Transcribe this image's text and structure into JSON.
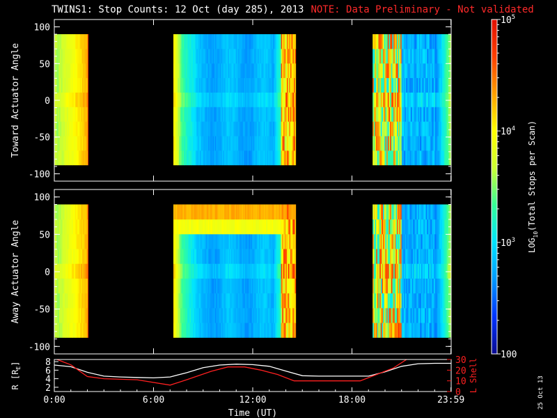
{
  "title": "TWINS1: Stop Counts: 12 Oct (day 285), 2013",
  "note": "NOTE: Data Preliminary - Not validated",
  "stamp": "25 Oct 13",
  "chart_data": [
    {
      "type": "heatmap",
      "ylabel": "Toward Actuator Angle",
      "ylim": [
        -110,
        110
      ],
      "yticks": [
        100,
        50,
        0,
        -50,
        -100
      ],
      "angle_range": [
        -88,
        90
      ],
      "data_intervals_hours": [
        [
          0.0,
          2.05
        ],
        [
          7.2,
          14.6
        ],
        [
          19.25,
          24.0
        ]
      ],
      "note": "log10 of total stops per scan vs time and actuator angle; visual reproduction of color distribution"
    },
    {
      "type": "heatmap",
      "ylabel": "Away Actuator Angle",
      "ylim": [
        -110,
        110
      ],
      "yticks": [
        100,
        50,
        0,
        -50,
        -100
      ],
      "angle_range": [
        -88,
        90
      ],
      "data_intervals_hours": [
        [
          0.0,
          2.05
        ],
        [
          7.2,
          14.6
        ],
        [
          19.25,
          24.0
        ]
      ]
    },
    {
      "type": "line",
      "ylabel": "R [R",
      "ylabel_sub": "E",
      "ylabel_close": "]",
      "ylim": [
        1,
        8.5
      ],
      "yticks": [
        8,
        6,
        4,
        2
      ],
      "y2label": "L Shell",
      "y2lim": [
        0,
        30
      ],
      "y2ticks": [
        30,
        20,
        10,
        0
      ],
      "xlabel": "Time (UT)",
      "xticks": [
        "0:00",
        "6:00",
        "12:00",
        "18:00",
        "23:59"
      ],
      "xtick_hours": [
        0,
        6,
        12,
        18,
        23.983
      ],
      "series": [
        {
          "name": "R",
          "color": "#ffffff",
          "x": [
            0,
            1,
            2,
            3,
            4,
            5,
            6,
            7,
            8,
            9,
            10,
            11,
            12,
            13,
            14,
            15,
            16,
            17,
            18,
            19,
            20,
            21,
            22,
            23,
            24
          ],
          "y": [
            7.2,
            6.8,
            5.5,
            4.6,
            4.4,
            4.3,
            4.2,
            4.4,
            5.4,
            6.6,
            7.2,
            7.4,
            7.3,
            6.9,
            5.8,
            4.7,
            4.6,
            4.6,
            4.6,
            4.6,
            5.6,
            6.9,
            7.5,
            7.6,
            7.6
          ]
        },
        {
          "name": "L Shell",
          "color": "#ff2020",
          "axis": "right",
          "x": [
            0.0,
            0.5,
            1.0,
            2.0,
            3.0,
            5.0,
            7.0,
            8.0,
            9.5,
            10.5,
            11.5,
            12.5,
            13.5,
            14.5,
            16.0,
            18.5,
            19.5,
            20.5,
            21.3
          ],
          "y": [
            31,
            28,
            25,
            14,
            12,
            11,
            6,
            11,
            19,
            23,
            23,
            20,
            16,
            10,
            10,
            10,
            16,
            22,
            30
          ]
        }
      ]
    }
  ],
  "colorbar": {
    "label": "LOG10(Total Stops per Scan)",
    "label_pre": "LOG",
    "label_sub": "10",
    "label_post": "(Total Stops per Scan)",
    "ticks": [
      {
        "base": "10",
        "exp": "5",
        "value": 100000
      },
      {
        "base": "10",
        "exp": "4",
        "value": 10000
      },
      {
        "base": "10",
        "exp": "3",
        "value": 1000
      },
      {
        "base": "100",
        "exp": "",
        "value": 100
      }
    ],
    "range": [
      100,
      100000
    ],
    "colors": [
      "#0a0a90",
      "#0033ff",
      "#0099ff",
      "#00e5ff",
      "#33ff99",
      "#ccff33",
      "#ffff00",
      "#ffa000",
      "#ff4000",
      "#e01000"
    ]
  }
}
